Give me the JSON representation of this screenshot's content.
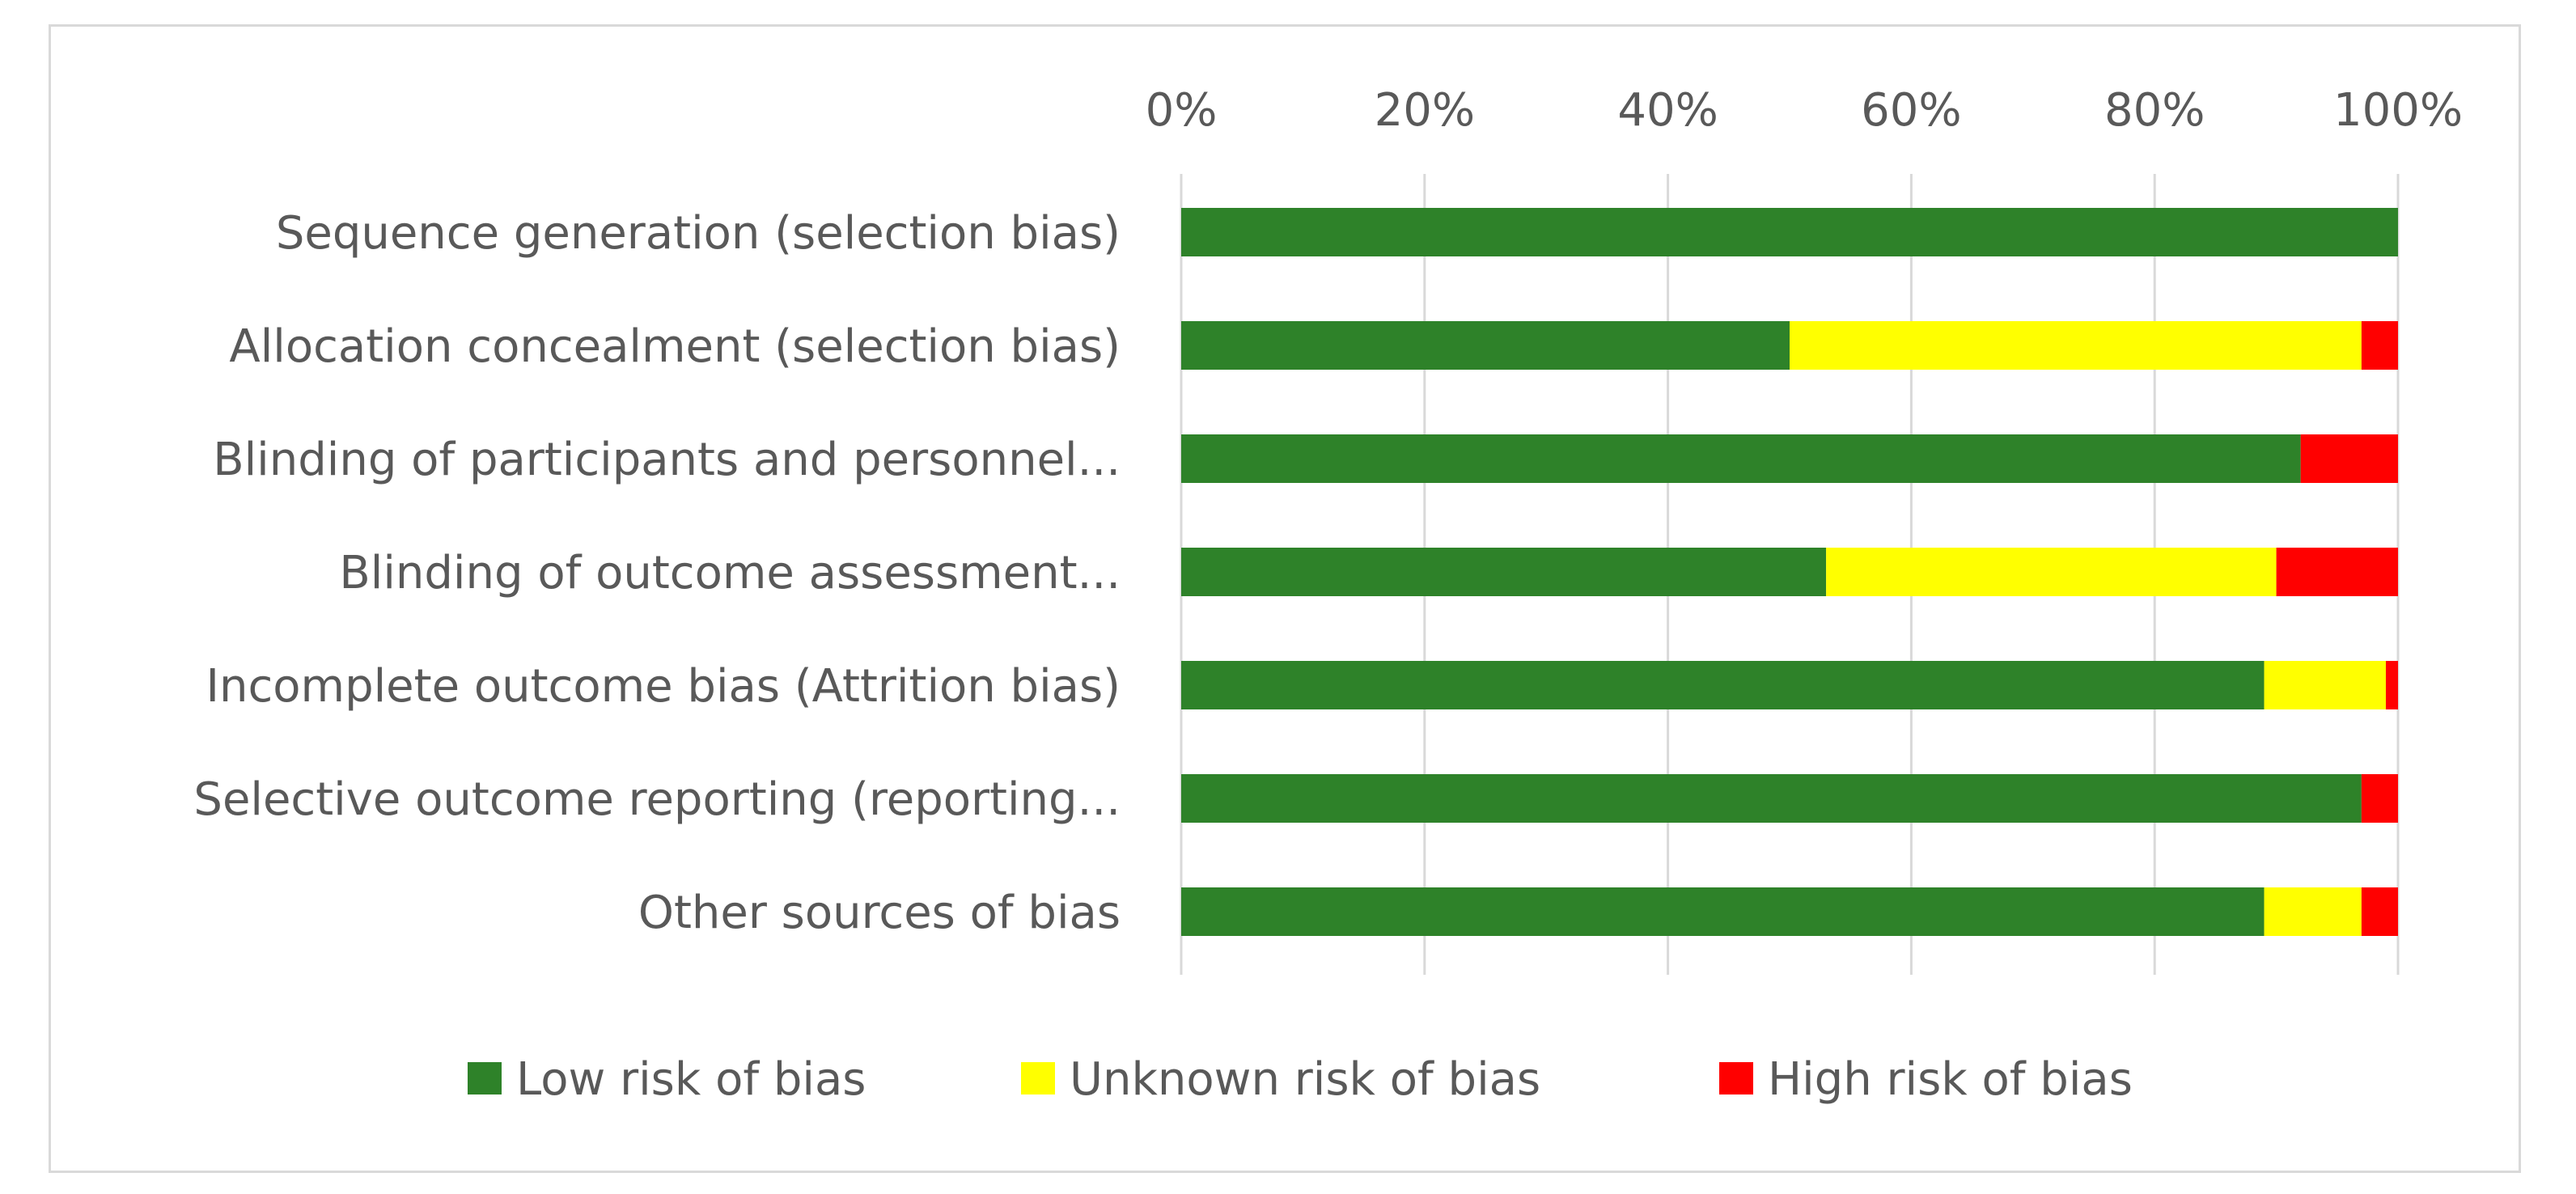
{
  "chart_data": {
    "type": "bar",
    "orientation": "horizontal",
    "stacked": "percent",
    "title": "",
    "xlabel": "",
    "ylabel": "",
    "xlim": [
      0,
      100
    ],
    "x_tick_labels": [
      "0%",
      "20%",
      "40%",
      "60%",
      "80%",
      "100%"
    ],
    "x_ticks": [
      0,
      20,
      40,
      60,
      80,
      100
    ],
    "grid": true,
    "legend_position": "bottom",
    "categories": [
      "Sequence generation (selection bias)",
      "Allocation concealment (selection bias)",
      "Blinding of participants and personnel...",
      "Blinding of outcome assessment...",
      "Incomplete outcome bias (Attrition bias)",
      "Selective outcome reporting (reporting...",
      "Other sources of bias"
    ],
    "series": [
      {
        "name": "Low risk of bias",
        "color": "#2e8229",
        "values": [
          100,
          50,
          92,
          53,
          89,
          97,
          89
        ]
      },
      {
        "name": "Unknown risk of bias",
        "color": "#ffff00",
        "values": [
          0,
          47,
          0,
          37,
          10,
          0,
          8
        ]
      },
      {
        "name": "High risk of bias",
        "color": "#ff0000",
        "values": [
          0,
          3,
          8,
          10,
          1,
          3,
          3
        ]
      }
    ]
  }
}
